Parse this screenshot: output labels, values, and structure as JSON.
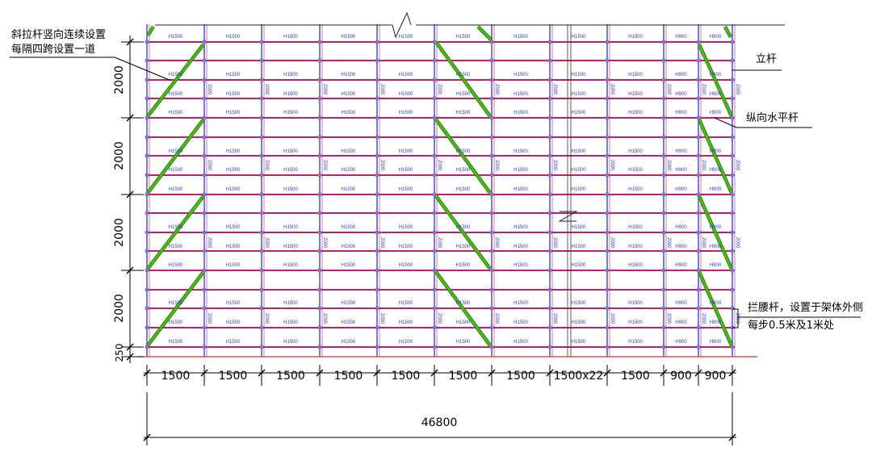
{
  "annotations": {
    "diagonal_brace_1": "斜拉杆竖向连续设置",
    "diagonal_brace_2": "每隔四跨设置一道",
    "upright": "立杆",
    "longitudinal_bar": "纵向水平杆",
    "guardrail_1": "拦腰杆，设置于架体外侧",
    "guardrail_2": "每步0.5米及1米处"
  },
  "bay_dimensions": [
    "1500",
    "1500",
    "1500",
    "1500",
    "1500",
    "1500",
    "1500",
    "1500x22",
    "1500",
    "900",
    "900"
  ],
  "bay_panel_labels": [
    "H1500",
    "H1500",
    "H1500",
    "H1500",
    "H1500",
    "H1500",
    "H1500",
    "H1500",
    "H1500",
    "H900",
    "H900"
  ],
  "lift_dimensions": [
    "2000",
    "2000",
    "2000",
    "2000",
    "250"
  ],
  "vertical_panel_label": "2000",
  "total_length": "46800",
  "colors": {
    "ledger": "#c0206a",
    "upright": "#5a5acc",
    "brace": "#4cbb17",
    "ground": "#e03030",
    "panel_text": "#3040c0"
  }
}
